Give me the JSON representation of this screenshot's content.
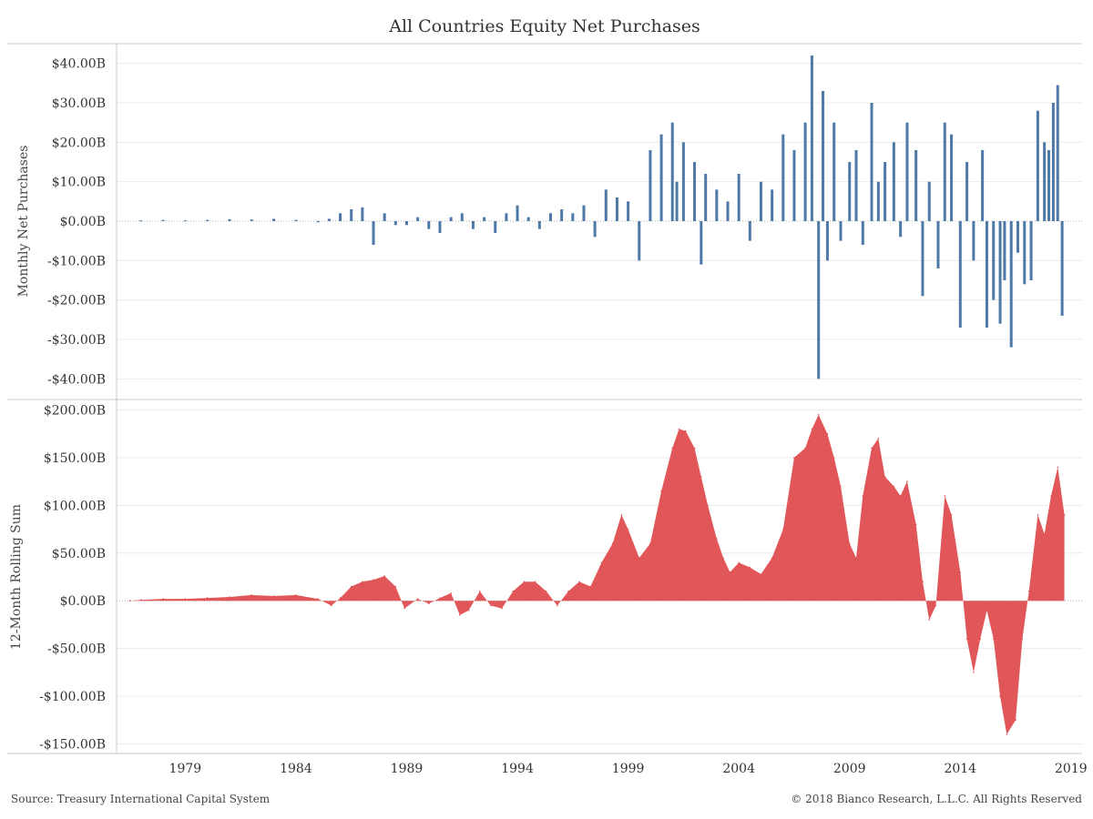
{
  "title": "All Countries Equity Net Purchases",
  "footer": {
    "source": "Source: Treasury International Capital System",
    "copyright": "© 2018 Bianco Research, L.L.C. All Rights Reserved"
  },
  "colors": {
    "monthly": "#4e79a7",
    "rolling": "#e15759",
    "grid": "#ececec",
    "zero": "#b0b0b0"
  },
  "x_axis": {
    "ticks": [
      "1979",
      "1984",
      "1989",
      "1994",
      "1999",
      "2004",
      "2009",
      "2014",
      "2019"
    ],
    "range": [
      1975.9,
      2019.5
    ]
  },
  "chart_data": [
    {
      "type": "bar",
      "ylabel": "Monthly Net Purchases",
      "ylim": [
        -45,
        45
      ],
      "yticks": [
        40,
        30,
        20,
        10,
        0,
        -10,
        -20,
        -30,
        -40
      ],
      "ytick_labels": [
        "$40.00B",
        "$30.00B",
        "$20.00B",
        "$10.00B",
        "$0.00B",
        "-$10.00B",
        "-$20.00B",
        "-$30.00B",
        "-$40.00B"
      ],
      "grid": true,
      "series": [
        {
          "color": "#4e79a7",
          "points": [
            [
              1977.0,
              0.2
            ],
            [
              1978.0,
              0.3
            ],
            [
              1979.0,
              0.2
            ],
            [
              1980.0,
              0.3
            ],
            [
              1981.0,
              0.5
            ],
            [
              1982.0,
              0.4
            ],
            [
              1983.0,
              0.6
            ],
            [
              1984.0,
              0.3
            ],
            [
              1985.0,
              -0.3
            ],
            [
              1985.5,
              0.6
            ],
            [
              1986.0,
              2
            ],
            [
              1986.5,
              3
            ],
            [
              1987.0,
              3.5
            ],
            [
              1987.5,
              -6
            ],
            [
              1988.0,
              2
            ],
            [
              1988.5,
              -1
            ],
            [
              1989.0,
              -1
            ],
            [
              1989.5,
              1
            ],
            [
              1990.0,
              -2
            ],
            [
              1990.5,
              -3
            ],
            [
              1991.0,
              1
            ],
            [
              1991.5,
              2
            ],
            [
              1992.0,
              -2
            ],
            [
              1992.5,
              1
            ],
            [
              1993.0,
              -3
            ],
            [
              1993.5,
              2
            ],
            [
              1994.0,
              4
            ],
            [
              1994.5,
              1
            ],
            [
              1995.0,
              -2
            ],
            [
              1995.5,
              2
            ],
            [
              1996.0,
              3
            ],
            [
              1996.5,
              2
            ],
            [
              1997.0,
              4
            ],
            [
              1997.5,
              -4
            ],
            [
              1998.0,
              8
            ],
            [
              1998.5,
              6
            ],
            [
              1999.0,
              5
            ],
            [
              1999.5,
              -10
            ],
            [
              2000.0,
              18
            ],
            [
              2000.5,
              22
            ],
            [
              2001.0,
              25
            ],
            [
              2001.2,
              10
            ],
            [
              2001.5,
              20
            ],
            [
              2002.0,
              15
            ],
            [
              2002.3,
              -11
            ],
            [
              2002.5,
              12
            ],
            [
              2003.0,
              8
            ],
            [
              2003.5,
              5
            ],
            [
              2004.0,
              12
            ],
            [
              2004.5,
              -5
            ],
            [
              2005.0,
              10
            ],
            [
              2005.5,
              8
            ],
            [
              2006.0,
              22
            ],
            [
              2006.5,
              18
            ],
            [
              2007.0,
              25
            ],
            [
              2007.3,
              42
            ],
            [
              2007.6,
              -40
            ],
            [
              2007.8,
              33
            ],
            [
              2008.0,
              -10
            ],
            [
              2008.3,
              25
            ],
            [
              2008.6,
              -5
            ],
            [
              2009.0,
              15
            ],
            [
              2009.3,
              18
            ],
            [
              2009.6,
              -6
            ],
            [
              2010.0,
              30
            ],
            [
              2010.3,
              10
            ],
            [
              2010.6,
              15
            ],
            [
              2011.0,
              20
            ],
            [
              2011.3,
              -4
            ],
            [
              2011.6,
              25
            ],
            [
              2012.0,
              18
            ],
            [
              2012.3,
              -19
            ],
            [
              2012.6,
              10
            ],
            [
              2013.0,
              -12
            ],
            [
              2013.3,
              25
            ],
            [
              2013.6,
              22
            ],
            [
              2014.0,
              -27
            ],
            [
              2014.3,
              15
            ],
            [
              2014.6,
              -10
            ],
            [
              2015.0,
              18
            ],
            [
              2015.2,
              -27
            ],
            [
              2015.5,
              -20
            ],
            [
              2015.8,
              -26
            ],
            [
              2016.0,
              -15
            ],
            [
              2016.3,
              -32
            ],
            [
              2016.6,
              -8
            ],
            [
              2016.9,
              -16
            ],
            [
              2017.2,
              -15
            ],
            [
              2017.5,
              28
            ],
            [
              2017.8,
              20
            ],
            [
              2018.0,
              18
            ],
            [
              2018.2,
              30
            ],
            [
              2018.4,
              34.5
            ],
            [
              2018.6,
              -24
            ]
          ]
        }
      ]
    },
    {
      "type": "area",
      "ylabel": "12-Month Rolling Sum",
      "ylim": [
        -160,
        210
      ],
      "yticks": [
        200,
        150,
        100,
        50,
        0,
        -50,
        -100,
        -150
      ],
      "ytick_labels": [
        "$200.00B",
        "$150.00B",
        "$100.00B",
        "$50.00B",
        "$0.00B",
        "-$50.00B",
        "-$100.00B",
        "-$150.00B"
      ],
      "grid": true,
      "series": [
        {
          "color": "#e15759",
          "points": [
            [
              1976.5,
              0
            ],
            [
              1977.0,
              1
            ],
            [
              1978.0,
              2
            ],
            [
              1979.0,
              2
            ],
            [
              1980.0,
              3
            ],
            [
              1981.0,
              4
            ],
            [
              1982.0,
              6
            ],
            [
              1983.0,
              5
            ],
            [
              1984.0,
              6
            ],
            [
              1985.0,
              2
            ],
            [
              1985.6,
              -5
            ],
            [
              1986.0,
              3
            ],
            [
              1986.5,
              15
            ],
            [
              1987.0,
              20
            ],
            [
              1987.5,
              22
            ],
            [
              1988.0,
              26
            ],
            [
              1988.5,
              15
            ],
            [
              1988.9,
              -8
            ],
            [
              1989.5,
              2
            ],
            [
              1990.0,
              -3
            ],
            [
              1990.5,
              3
            ],
            [
              1991.0,
              8
            ],
            [
              1991.4,
              -15
            ],
            [
              1991.8,
              -10
            ],
            [
              1992.3,
              10
            ],
            [
              1992.8,
              -5
            ],
            [
              1993.3,
              -8
            ],
            [
              1993.8,
              10
            ],
            [
              1994.3,
              20
            ],
            [
              1994.8,
              20
            ],
            [
              1995.3,
              10
            ],
            [
              1995.8,
              -5
            ],
            [
              1996.3,
              10
            ],
            [
              1996.8,
              20
            ],
            [
              1997.3,
              15
            ],
            [
              1997.8,
              40
            ],
            [
              1998.3,
              60
            ],
            [
              1998.7,
              90
            ],
            [
              1999.0,
              75
            ],
            [
              1999.5,
              45
            ],
            [
              2000.0,
              60
            ],
            [
              2000.5,
              115
            ],
            [
              2001.0,
              160
            ],
            [
              2001.3,
              180
            ],
            [
              2001.6,
              178
            ],
            [
              2002.0,
              160
            ],
            [
              2002.3,
              130
            ],
            [
              2002.6,
              100
            ],
            [
              2003.0,
              65
            ],
            [
              2003.3,
              45
            ],
            [
              2003.6,
              30
            ],
            [
              2004.0,
              40
            ],
            [
              2004.5,
              35
            ],
            [
              2005.0,
              28
            ],
            [
              2005.5,
              45
            ],
            [
              2006.0,
              75
            ],
            [
              2006.5,
              150
            ],
            [
              2007.0,
              160
            ],
            [
              2007.3,
              180
            ],
            [
              2007.6,
              195
            ],
            [
              2008.0,
              175
            ],
            [
              2008.3,
              150
            ],
            [
              2008.6,
              120
            ],
            [
              2009.0,
              60
            ],
            [
              2009.3,
              45
            ],
            [
              2009.6,
              110
            ],
            [
              2010.0,
              160
            ],
            [
              2010.3,
              170
            ],
            [
              2010.6,
              130
            ],
            [
              2011.0,
              120
            ],
            [
              2011.3,
              110
            ],
            [
              2011.6,
              125
            ],
            [
              2012.0,
              80
            ],
            [
              2012.3,
              20
            ],
            [
              2012.6,
              -20
            ],
            [
              2012.9,
              -5
            ],
            [
              2013.3,
              110
            ],
            [
              2013.6,
              90
            ],
            [
              2014.0,
              30
            ],
            [
              2014.3,
              -40
            ],
            [
              2014.6,
              -75
            ],
            [
              2014.9,
              -40
            ],
            [
              2015.2,
              -10
            ],
            [
              2015.5,
              -40
            ],
            [
              2015.8,
              -100
            ],
            [
              2016.1,
              -140
            ],
            [
              2016.5,
              -125
            ],
            [
              2016.8,
              -40
            ],
            [
              2017.1,
              10
            ],
            [
              2017.5,
              90
            ],
            [
              2017.8,
              70
            ],
            [
              2018.1,
              110
            ],
            [
              2018.4,
              140
            ],
            [
              2018.7,
              90
            ]
          ]
        }
      ]
    }
  ]
}
